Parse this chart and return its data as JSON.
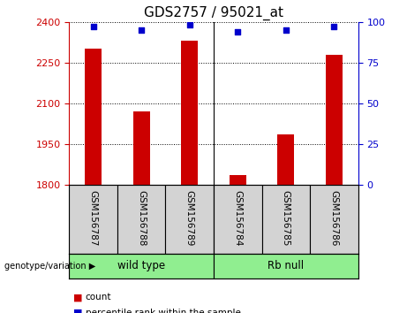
{
  "title": "GDS2757 / 95021_at",
  "samples": [
    "GSM156787",
    "GSM156788",
    "GSM156789",
    "GSM156784",
    "GSM156785",
    "GSM156786"
  ],
  "counts": [
    2300,
    2070,
    2330,
    1835,
    1985,
    2280
  ],
  "percentile_ranks": [
    97,
    95,
    98,
    94,
    95,
    97
  ],
  "ylim_left": [
    1800,
    2400
  ],
  "ylim_right": [
    0,
    100
  ],
  "yticks_left": [
    1800,
    1950,
    2100,
    2250,
    2400
  ],
  "yticks_right": [
    0,
    25,
    50,
    75,
    100
  ],
  "bar_color": "#cc0000",
  "dot_color": "#0000cc",
  "group_label_color": "#90ee90",
  "sample_bg_color": "#d3d3d3",
  "genotype_label": "genotype/variation",
  "legend_count": "count",
  "legend_percentile": "percentile rank within the sample",
  "title_fontsize": 11,
  "tick_fontsize": 8,
  "label_fontsize": 7.5,
  "bar_width": 0.35,
  "groups": [
    {
      "label": "wild type",
      "start": 0,
      "end": 3
    },
    {
      "label": "Rb null",
      "start": 3,
      "end": 6
    }
  ]
}
